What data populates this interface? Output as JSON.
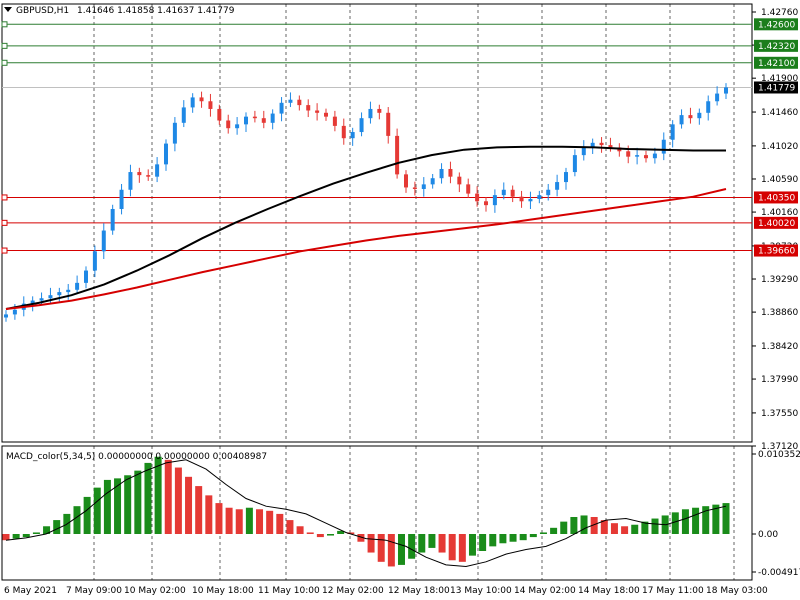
{
  "header": {
    "symbol": "GBPUSD,H1",
    "quotes": "1.41646 1.41858 1.41637 1.41779",
    "indicator": "MACD_color(5,34,5) 0.00000000 0.00000000 0.00408987"
  },
  "chart_data": [
    {
      "type": "candlestick",
      "symbol": "GBPUSD",
      "timeframe": "H1",
      "ylim": [
        1.3712,
        1.4276
      ],
      "y_ticks": [
        "1.42760",
        "1.42330",
        "1.41900",
        "1.41460",
        "1.41020",
        "1.40590",
        "1.40160",
        "1.39720",
        "1.39290",
        "1.38860",
        "1.38420",
        "1.37990",
        "1.37550",
        "1.37120"
      ],
      "x_ticks": [
        "6 May 2021",
        "7 May 09:00",
        "10 May 02:00",
        "10 May 18:00",
        "11 May 10:00",
        "12 May 02:00",
        "12 May 18:00",
        "13 May 10:00",
        "14 May 02:00",
        "14 May 18:00",
        "17 May 11:00",
        "18 May 03:00"
      ],
      "last_price": "1.41779",
      "up_color": "#1e88e5",
      "down_color": "#e53935",
      "closes": [
        1.3883,
        1.3889,
        1.3897,
        1.3901,
        1.3904,
        1.3908,
        1.3912,
        1.3915,
        1.3924,
        1.394,
        1.3965,
        1.3992,
        1.402,
        1.4045,
        1.4068,
        1.4064,
        1.4062,
        1.4078,
        1.4105,
        1.4132,
        1.4152,
        1.4165,
        1.416,
        1.415,
        1.4135,
        1.4125,
        1.413,
        1.414,
        1.4138,
        1.4132,
        1.4144,
        1.4158,
        1.4162,
        1.4155,
        1.4148,
        1.4145,
        1.414,
        1.4128,
        1.4112,
        1.412,
        1.4138,
        1.415,
        1.4145,
        1.4115,
        1.4065,
        1.4048,
        1.4046,
        1.4052,
        1.406,
        1.4072,
        1.4062,
        1.4052,
        1.404,
        1.403,
        1.4025,
        1.4038,
        1.4045,
        1.4036,
        1.403,
        1.4033,
        1.4038,
        1.4045,
        1.4055,
        1.4068,
        1.409,
        1.41,
        1.4106,
        1.4103,
        1.41,
        1.4095,
        1.4088,
        1.409,
        1.4086,
        1.4092,
        1.411,
        1.413,
        1.4142,
        1.4138,
        1.4145,
        1.416,
        1.417,
        1.4178
      ],
      "series": [
        {
          "name": "MA black",
          "color": "#000000",
          "values": [
            1.389,
            1.3898,
            1.3908,
            1.3922,
            1.394,
            1.396,
            1.3982,
            1.4002,
            1.402,
            1.4037,
            1.4053,
            1.4067,
            1.408,
            1.409,
            1.4097,
            1.41,
            1.4101,
            1.4101,
            1.41,
            1.4098,
            1.4097,
            1.4096,
            1.4096
          ]
        },
        {
          "name": "MA red",
          "color": "#d50000",
          "values": [
            1.389,
            1.3895,
            1.3901,
            1.3909,
            1.3918,
            1.3928,
            1.3938,
            1.3947,
            1.3956,
            1.3965,
            1.3972,
            1.3979,
            1.3985,
            1.399,
            1.3995,
            1.4,
            1.4006,
            1.4012,
            1.4018,
            1.4024,
            1.403,
            1.4036,
            1.4046
          ]
        }
      ],
      "levels": [
        {
          "label": "1.42600",
          "price": 1.426,
          "bg": "#1b7e1b",
          "line": "#2e7d32"
        },
        {
          "label": "1.42320",
          "price": 1.4232,
          "bg": "#1b7e1b",
          "line": "#2e7d32"
        },
        {
          "label": "1.42100",
          "price": 1.421,
          "bg": "#1b7e1b",
          "line": "#2e7d32"
        },
        {
          "label": "1.40350",
          "price": 1.4035,
          "bg": "#d50000",
          "line": "#d50000"
        },
        {
          "label": "1.40020",
          "price": 1.4002,
          "bg": "#d50000",
          "line": "#d50000"
        },
        {
          "label": "1.39660",
          "price": 1.3966,
          "bg": "#d50000",
          "line": "#d50000"
        }
      ]
    },
    {
      "type": "bar",
      "name": "MACD_color(5,34,5)",
      "ylim": [
        -0.0049176,
        0.0103525
      ],
      "y_ticks": [
        "0.0103525",
        "0.00",
        "-0.0049176"
      ],
      "up_color": "#1a8c1a",
      "down_color": "#e53935",
      "values": [
        -0.0008,
        -0.0006,
        -0.0004,
        0.0002,
        0.001,
        0.0018,
        0.0026,
        0.0036,
        0.0048,
        0.006,
        0.007,
        0.0072,
        0.0076,
        0.0082,
        0.0092,
        0.01,
        0.0096,
        0.0086,
        0.0074,
        0.0062,
        0.005,
        0.004,
        0.0034,
        0.0032,
        0.0034,
        0.0032,
        0.003,
        0.0026,
        0.0018,
        0.001,
        0.0002,
        -0.0004,
        -0.0002,
        0.0004,
        0.0002,
        -0.001,
        -0.0024,
        -0.0036,
        -0.0042,
        -0.004,
        -0.0032,
        -0.0024,
        -0.0018,
        -0.0024,
        -0.0034,
        -0.0036,
        -0.0028,
        -0.0022,
        -0.0016,
        -0.0012,
        -0.001,
        -0.0008,
        -0.0004,
        0.0002,
        0.0008,
        0.0016,
        0.0022,
        0.0024,
        0.0022,
        0.0018,
        0.0014,
        0.001,
        0.0012,
        0.0016,
        0.002,
        0.0024,
        0.0028,
        0.0032,
        0.0034,
        0.0036,
        0.0038,
        0.004
      ],
      "signal": [
        -0.0008,
        -0.0005,
        0.0,
        0.0012,
        0.003,
        0.0052,
        0.007,
        0.0082,
        0.0092,
        0.0096,
        0.0084,
        0.0064,
        0.0046,
        0.0036,
        0.0032,
        0.0026,
        0.0014,
        0.0002,
        -0.0006,
        -0.0008,
        -0.0016,
        -0.003,
        -0.004,
        -0.0042,
        -0.0036,
        -0.0026,
        -0.002,
        -0.0016,
        -0.0006,
        0.0008,
        0.0018,
        0.002,
        0.0014,
        0.0012,
        0.002,
        0.003,
        0.0036
      ]
    }
  ]
}
